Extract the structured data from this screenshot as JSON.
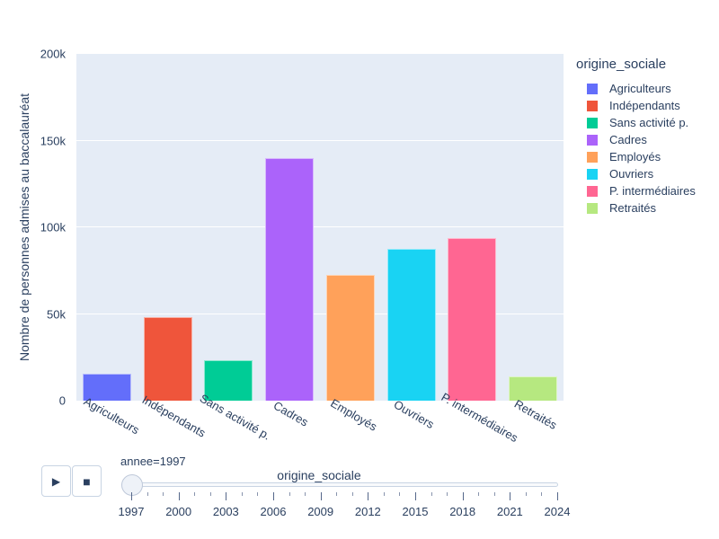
{
  "colors": {
    "text": "#2a3f5f",
    "paper_bg": "#ffffff",
    "plot_bg": "#e5ecf6",
    "grid": "#ffffff",
    "control_border": "#c8d4e3",
    "slider_track_fill": "#f8fafc"
  },
  "chart_data": {
    "type": "bar",
    "title": "",
    "xlabel": "origine_sociale",
    "ylabel": "Nombre de personnes admises au baccalauréat",
    "categories": [
      "Agriculteurs",
      "Indépendants",
      "Sans activité p.",
      "Cadres",
      "Employés",
      "Ouvriers",
      "P. intermédiaires",
      "Retraités"
    ],
    "values": [
      15500,
      48000,
      23500,
      140000,
      72500,
      87500,
      94000,
      14000
    ],
    "bar_colors": [
      "#636efa",
      "#ef553b",
      "#00cc96",
      "#ab63fa",
      "#ffa15a",
      "#19d3f3",
      "#ff6692",
      "#b6e880"
    ],
    "ylim": [
      0,
      200000
    ],
    "yticks": [
      {
        "value": 0,
        "label": "0"
      },
      {
        "value": 50000,
        "label": "50k"
      },
      {
        "value": 100000,
        "label": "100k"
      },
      {
        "value": 150000,
        "label": "150k"
      },
      {
        "value": 200000,
        "label": "200k"
      }
    ],
    "grid": true,
    "legend_position": "right",
    "legend": {
      "title": "origine_sociale",
      "entries": [
        {
          "label": "Agriculteurs",
          "color": "#636efa"
        },
        {
          "label": "Indépendants",
          "color": "#ef553b"
        },
        {
          "label": "Sans activité p.",
          "color": "#00cc96"
        },
        {
          "label": "Cadres",
          "color": "#ab63fa"
        },
        {
          "label": "Employés",
          "color": "#ffa15a"
        },
        {
          "label": "Ouvriers",
          "color": "#19d3f3"
        },
        {
          "label": "P. intermédiaires",
          "color": "#ff6692"
        },
        {
          "label": "Retraités",
          "color": "#b6e880"
        }
      ]
    }
  },
  "controls": {
    "play_icon": "▶",
    "stop_icon": "■",
    "frame_label": "annee=1997",
    "slider": {
      "year_start": 1997,
      "year_end": 2024,
      "label_every": 3,
      "labeled_years": [
        "1997",
        "2000",
        "2003",
        "2006",
        "2009",
        "2012",
        "2015",
        "2018",
        "2021",
        "2024"
      ]
    }
  }
}
